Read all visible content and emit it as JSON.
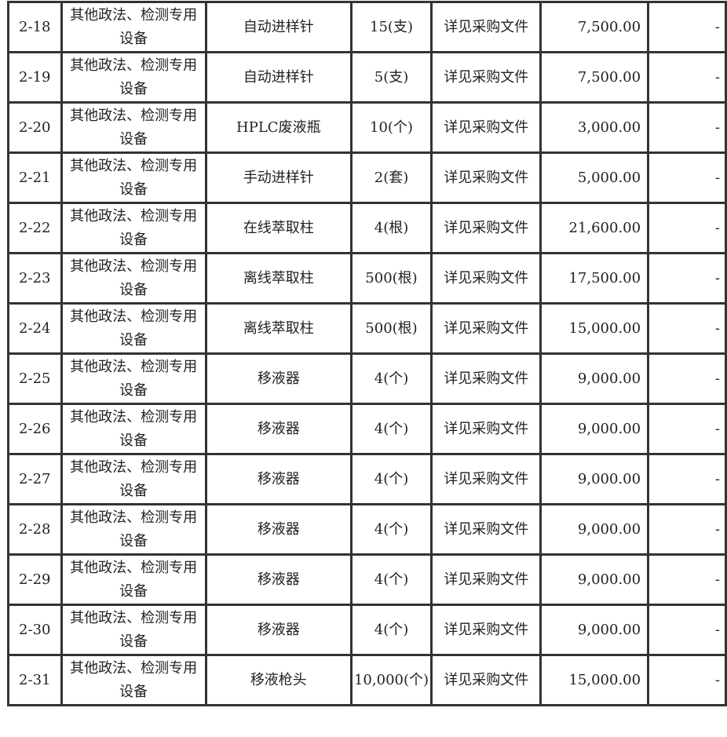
{
  "rows": [
    {
      "no": "2-18",
      "category": "其他政法、检测专用设备",
      "name": "自动进样针",
      "qty": "15(支)",
      "spec": "详见采购文件",
      "amount": "7,500.00",
      "remark": "-"
    },
    {
      "no": "2-19",
      "category": "其他政法、检测专用设备",
      "name": "自动进样针",
      "qty": "5(支)",
      "spec": "详见采购文件",
      "amount": "7,500.00",
      "remark": "-"
    },
    {
      "no": "2-20",
      "category": "其他政法、检测专用设备",
      "name": "HPLC废液瓶",
      "qty": "10(个)",
      "spec": "详见采购文件",
      "amount": "3,000.00",
      "remark": "-"
    },
    {
      "no": "2-21",
      "category": "其他政法、检测专用设备",
      "name": "手动进样针",
      "qty": "2(套)",
      "spec": "详见采购文件",
      "amount": "5,000.00",
      "remark": "-"
    },
    {
      "no": "2-22",
      "category": "其他政法、检测专用设备",
      "name": "在线萃取柱",
      "qty": "4(根)",
      "spec": "详见采购文件",
      "amount": "21,600.00",
      "remark": "-"
    },
    {
      "no": "2-23",
      "category": "其他政法、检测专用设备",
      "name": "离线萃取柱",
      "qty": "500(根)",
      "spec": "详见采购文件",
      "amount": "17,500.00",
      "remark": "-"
    },
    {
      "no": "2-24",
      "category": "其他政法、检测专用设备",
      "name": "离线萃取柱",
      "qty": "500(根)",
      "spec": "详见采购文件",
      "amount": "15,000.00",
      "remark": "-"
    },
    {
      "no": "2-25",
      "category": "其他政法、检测专用设备",
      "name": "移液器",
      "qty": "4(个)",
      "spec": "详见采购文件",
      "amount": "9,000.00",
      "remark": "-"
    },
    {
      "no": "2-26",
      "category": "其他政法、检测专用设备",
      "name": "移液器",
      "qty": "4(个)",
      "spec": "详见采购文件",
      "amount": "9,000.00",
      "remark": "-"
    },
    {
      "no": "2-27",
      "category": "其他政法、检测专用设备",
      "name": "移液器",
      "qty": "4(个)",
      "spec": "详见采购文件",
      "amount": "9,000.00",
      "remark": "-"
    },
    {
      "no": "2-28",
      "category": "其他政法、检测专用设备",
      "name": "移液器",
      "qty": "4(个)",
      "spec": "详见采购文件",
      "amount": "9,000.00",
      "remark": "-"
    },
    {
      "no": "2-29",
      "category": "其他政法、检测专用设备",
      "name": "移液器",
      "qty": "4(个)",
      "spec": "详见采购文件",
      "amount": "9,000.00",
      "remark": "-"
    },
    {
      "no": "2-30",
      "category": "其他政法、检测专用设备",
      "name": "移液器",
      "qty": "4(个)",
      "spec": "详见采购文件",
      "amount": "9,000.00",
      "remark": "-"
    },
    {
      "no": "2-31",
      "category": "其他政法、检测专用设备",
      "name": "移液枪头",
      "qty": "10,000(个)",
      "spec": "详见采购文件",
      "amount": "15,000.00",
      "remark": "-"
    }
  ]
}
